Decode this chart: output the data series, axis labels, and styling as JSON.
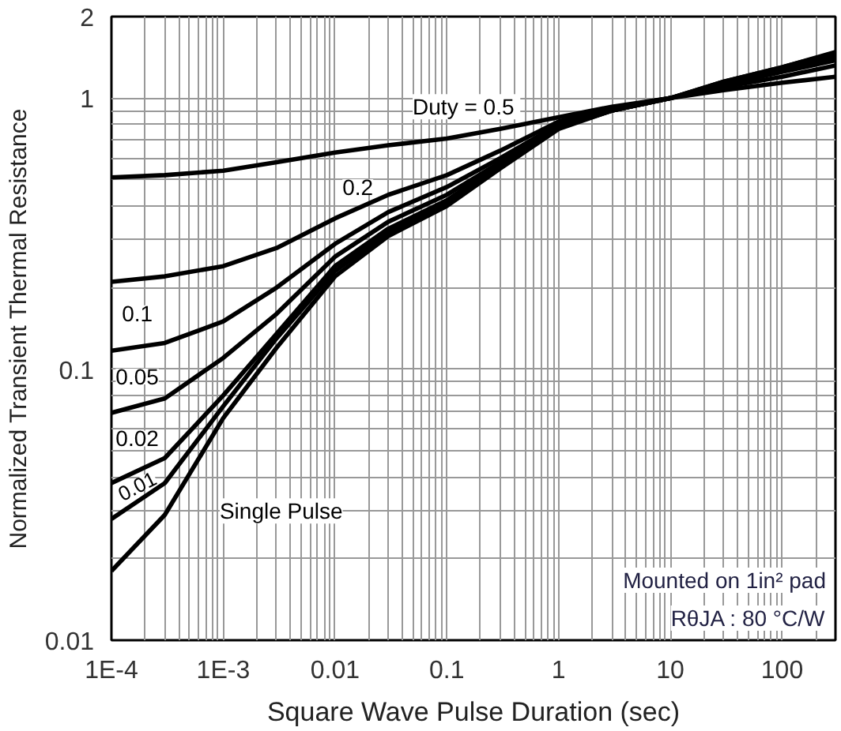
{
  "chart_data": {
    "type": "line",
    "xlabel": "Square Wave Pulse Duration (sec)",
    "ylabel": "Normalized Transient Thermal Resistance",
    "x": [
      0.0001,
      0.0003,
      0.001,
      0.003,
      0.01,
      0.03,
      0.1,
      0.3,
      1,
      3,
      10,
      30,
      100,
      300
    ],
    "series": [
      {
        "name": "Duty =  0.5",
        "color": "#000000",
        "values": [
          0.51,
          0.52,
          0.54,
          0.58,
          0.63,
          0.67,
          0.71,
          0.77,
          0.85,
          0.93,
          1.0,
          1.07,
          1.14,
          1.2
        ]
      },
      {
        "name": "0.2",
        "color": "#000000",
        "values": [
          0.21,
          0.22,
          0.24,
          0.28,
          0.36,
          0.44,
          0.52,
          0.64,
          0.82,
          0.92,
          1.0,
          1.1,
          1.2,
          1.32
        ]
      },
      {
        "name": "0.1",
        "color": "#000000",
        "values": [
          0.117,
          0.125,
          0.15,
          0.2,
          0.29,
          0.38,
          0.47,
          0.6,
          0.8,
          0.91,
          1.0,
          1.12,
          1.25,
          1.38
        ]
      },
      {
        "name": "0.05",
        "color": "#000000",
        "values": [
          0.069,
          0.078,
          0.11,
          0.16,
          0.26,
          0.35,
          0.44,
          0.58,
          0.79,
          0.9,
          1.0,
          1.13,
          1.27,
          1.42
        ]
      },
      {
        "name": "0.02",
        "color": "#000000",
        "values": [
          0.038,
          0.047,
          0.08,
          0.135,
          0.24,
          0.33,
          0.42,
          0.57,
          0.78,
          0.9,
          1.0,
          1.14,
          1.29,
          1.45
        ]
      },
      {
        "name": "0.01",
        "color": "#000000",
        "values": [
          0.028,
          0.038,
          0.073,
          0.13,
          0.23,
          0.32,
          0.41,
          0.56,
          0.78,
          0.9,
          1.0,
          1.15,
          1.3,
          1.47
        ]
      },
      {
        "name": "Single Pulse",
        "color": "#000000",
        "values": [
          0.018,
          0.029,
          0.066,
          0.12,
          0.22,
          0.31,
          0.4,
          0.55,
          0.77,
          0.9,
          1.0,
          1.15,
          1.3,
          1.48
        ]
      }
    ],
    "xlim": [
      0.0001,
      300
    ],
    "ylim": [
      0.01,
      2
    ],
    "xticks": [
      {
        "value": 0.0001,
        "label": "1E-4"
      },
      {
        "value": 0.001,
        "label": "1E-3"
      },
      0.01,
      0.1,
      1,
      10,
      100
    ],
    "yticks": [
      0.01,
      0.1,
      1,
      2
    ],
    "log": "xy",
    "grid": true,
    "annotations": [
      "Mounted on 1in² pad",
      "RθJA : 80 °C/W"
    ]
  }
}
